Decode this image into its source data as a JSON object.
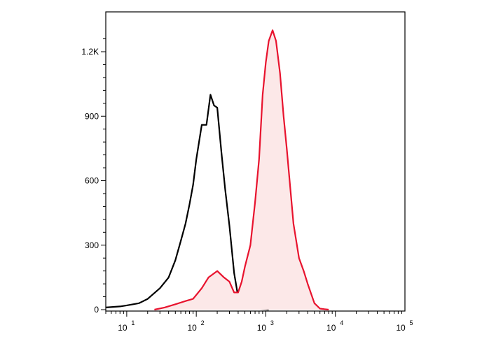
{
  "chart_data": {
    "type": "area",
    "title": "",
    "xlabel": "",
    "ylabel": "",
    "x_scale": "log",
    "xlim": [
      5,
      100000
    ],
    "ylim": [
      0,
      1400
    ],
    "grid": false,
    "legend": "none",
    "x_ticks": [
      {
        "value": 10,
        "base": "10",
        "exp": "1"
      },
      {
        "value": 100,
        "base": "10",
        "exp": "2"
      },
      {
        "value": 1000,
        "base": "10",
        "exp": "3"
      },
      {
        "value": 10000,
        "base": "10",
        "exp": "4"
      },
      {
        "value": 100000,
        "base": "10",
        "exp": "5"
      }
    ],
    "y_ticks": [
      {
        "value": 0,
        "label": "0"
      },
      {
        "value": 300,
        "label": "300"
      },
      {
        "value": 600,
        "label": "600"
      },
      {
        "value": 900,
        "label": "900"
      },
      {
        "value": 1200,
        "label": "1.2K"
      }
    ],
    "series": [
      {
        "color": "#000000",
        "filled": false,
        "x": [
          5,
          8,
          10,
          15,
          20,
          30,
          40,
          50,
          60,
          70,
          80,
          90,
          100,
          120,
          140,
          160,
          180,
          200,
          230,
          260,
          300,
          350,
          400,
          500,
          600,
          800,
          1000,
          1100
        ],
        "y": [
          10,
          15,
          20,
          30,
          50,
          100,
          150,
          230,
          320,
          400,
          490,
          580,
          700,
          860,
          860,
          1000,
          950,
          940,
          730,
          560,
          390,
          170,
          60,
          15,
          8,
          4,
          2,
          0
        ]
      },
      {
        "color": "#e8132e",
        "fill": "#fce8e8",
        "filled": true,
        "x": [
          25,
          35,
          50,
          70,
          90,
          120,
          150,
          200,
          250,
          300,
          350,
          400,
          450,
          500,
          600,
          700,
          800,
          900,
          1000,
          1100,
          1250,
          1400,
          1600,
          1800,
          2000,
          2500,
          3000,
          3500,
          4000,
          5000,
          6000,
          7000,
          8000
        ],
        "y": [
          0,
          10,
          25,
          40,
          50,
          100,
          150,
          180,
          150,
          130,
          80,
          80,
          130,
          200,
          300,
          500,
          700,
          1000,
          1150,
          1250,
          1300,
          1250,
          1100,
          900,
          750,
          400,
          240,
          180,
          120,
          30,
          5,
          2,
          0
        ]
      }
    ]
  }
}
